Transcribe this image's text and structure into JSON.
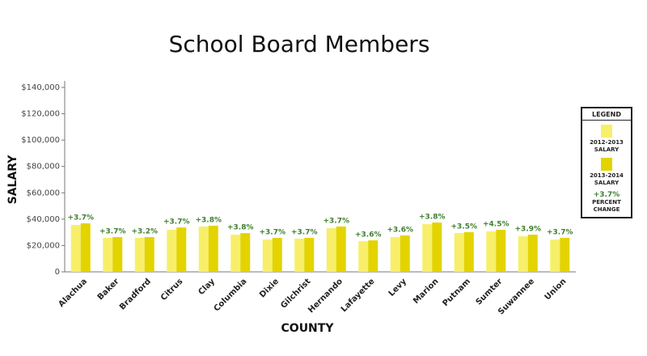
{
  "chart_data": {
    "type": "bar",
    "title": "School Board Members",
    "x_label": "COUNTY",
    "y_label": "SALARY",
    "categories": [
      "Alachua",
      "Baker",
      "Bradford",
      "Citrus",
      "Clay",
      "Columbia",
      "Dixie",
      "Gilchrist",
      "Hernando",
      "Lafayette",
      "Levy",
      "Marion",
      "Putnam",
      "Sumter",
      "Suwannee",
      "Union"
    ],
    "series": [
      {
        "name": "2012-2013 SALARY",
        "color": "#f7ef6a",
        "values": [
          35600,
          25800,
          25800,
          31900,
          34400,
          28200,
          24500,
          25200,
          33100,
          23300,
          26400,
          36200,
          29400,
          30700,
          27000,
          24500
        ]
      },
      {
        "name": "2013-2014 SALARY",
        "color": "#e3d400",
        "values": [
          36800,
          26400,
          26400,
          33700,
          35000,
          29400,
          25800,
          25800,
          34400,
          23900,
          27600,
          37400,
          30100,
          31900,
          28200,
          25800
        ]
      }
    ],
    "percent_change": [
      "+3.7%",
      "+3.7%",
      "+3.2%",
      "+3.7%",
      "+3.8%",
      "+3.8%",
      "+3.7%",
      "+3.7%",
      "+3.7%",
      "+3.6%",
      "+3.6%",
      "+3.8%",
      "+3.5%",
      "+4.5%",
      "+3.9%",
      "+3.7%"
    ],
    "percent_color": "#3f7f2f",
    "legend": {
      "title": "LEGEND",
      "sample": "+3.7%",
      "percent_label": "PERCENT CHANGE"
    },
    "ylim": [
      0,
      140000
    ],
    "yticks": [
      0,
      {
        "value": 20000,
        "label": "$20,000"
      },
      {
        "value": 40000,
        "label": "$40,000"
      },
      {
        "value": 60000,
        "label": "$60,000"
      },
      {
        "value": 80000,
        "label": "$80,000"
      },
      {
        "value": 100000,
        "label": "$100,000"
      },
      {
        "value": 120000,
        "label": "$120,000"
      },
      {
        "value": 140000,
        "label": "$140,000"
      }
    ]
  }
}
